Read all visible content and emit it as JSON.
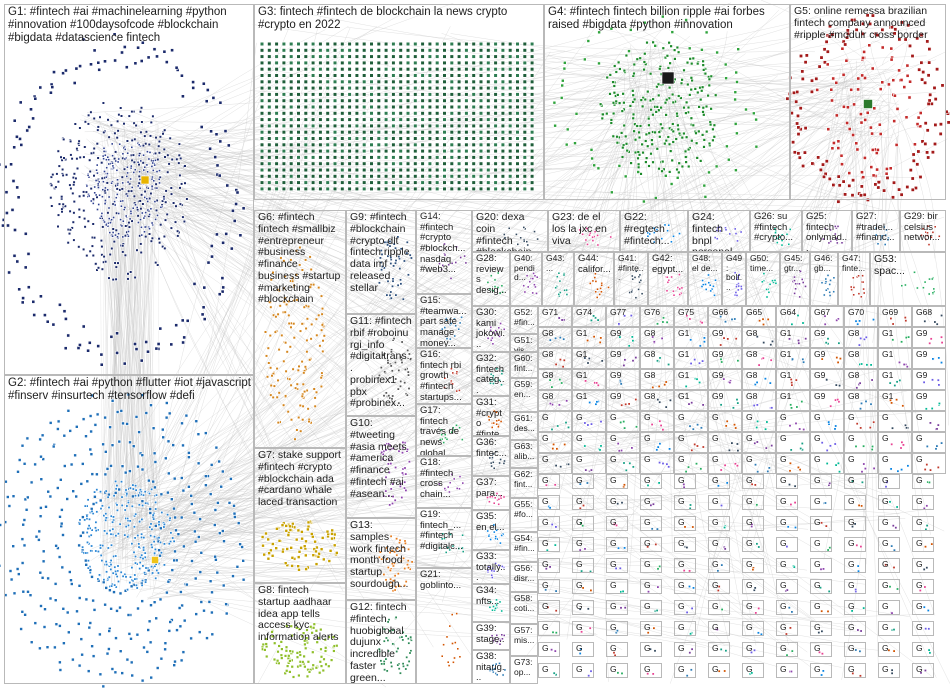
{
  "colors": {
    "background": "#ffffff",
    "border": "#b9b9b9",
    "edges": "#bdbdbd",
    "G1": "#1b2a6b",
    "G2": "#1f6fb8",
    "G3": "#1f5e3a",
    "G4": "#1c8a2a",
    "G5": "#a31a1a",
    "G6": "#d4861e",
    "G7": "#c8a100",
    "G8": "#8fbf2a",
    "G9": "#2c4f7c",
    "G10": "#8e44ad",
    "G11": "#5a5a5a",
    "G12": "#2e8b57",
    "G13": "#e67e22",
    "misc": [
      "#7a3d9c",
      "#2c7bb6",
      "#c0392b",
      "#27ae60",
      "#8e44ad",
      "#16a085",
      "#d35400",
      "#34495e",
      "#e84393",
      "#0984e3",
      "#6c5ce7",
      "#00b894"
    ]
  },
  "groups": [
    {
      "id": "G1",
      "label": "G1: #fintech #ai #machinelearning #python\n#innovation #100daysofcode #blockchain\n#bigdata #datascience fintech"
    },
    {
      "id": "G2",
      "label": "G2: #fintech #ai #python #flutter #iot #javascript\n#finserv #insurtech #tensorflow #defi"
    },
    {
      "id": "G3",
      "label": "G3: fintech #fintech de blockchain la news crypto\n#crypto en 2022"
    },
    {
      "id": "G4",
      "label": "G4: #fintech fintech billion ripple #ai forbes\nraised #bigdata #python #innovation"
    },
    {
      "id": "G5",
      "label": "G5: online remessa brazilian\nfintech company announced\n#ripple #modulr cross border"
    },
    {
      "id": "G6",
      "label": "G6: #fintech\nfintech #smallbiz\n#entrepreneur\n#business\n#finance\nbusiness #startup\n#marketing\n#blockchain"
    },
    {
      "id": "G7",
      "label": "G7: stake support\n#fintech #crypto\n#blockchain ada\n#cardano whale\nlaced transaction"
    },
    {
      "id": "G8",
      "label": "G8: fintech\nstartup aadhaar\nidea app tells\naccess kyc\ninformation alerts"
    },
    {
      "id": "G9",
      "label": "G9: #fintech\n#blockchain\n#crypto dlt\nfintech ripple\ndata imf\nreleased\nstellar"
    },
    {
      "id": "G10",
      "label": "G10:\n#tweeting\n#asia meets\n#america\n#finance\n#fintech #ai\n#asean..."
    },
    {
      "id": "G11",
      "label": "G11: #fintech\nrbif #roboinu\nrgi_info\n#digitaltrans...\nprobinex1\npbx\n#probinex..."
    },
    {
      "id": "G12",
      "label": "G12: fintech\n#fintech\nhuobiglobal\ndujunx\nincredible\nfaster green..."
    },
    {
      "id": "G13",
      "label": "G13:\nsamples\nwork fintech\nmonth food\nstartup\nsourdough..."
    },
    {
      "id": "G14",
      "label": "G14:\n#fintech\n#crypto\n#blockch...\nnasdaq\n#web3..."
    },
    {
      "id": "G15",
      "label": "G15:\n#teamwa...\npart safe\nmanage\nmoney..."
    },
    {
      "id": "G16",
      "label": "G16:\nfintech rbi\ngrowth\n#fintech\nstartups..."
    },
    {
      "id": "G17",
      "label": "G17:\nfintech\ntravés de\nnews\nglobal..."
    },
    {
      "id": "G18",
      "label": "G18:\n#fintech\ncross\nchain..."
    },
    {
      "id": "G19",
      "label": "G19:\nfintech_...\n#fintech\n#digitalc..."
    },
    {
      "id": "G20",
      "label": "G20: dexa coin\n#fintech\n#blockchain..."
    },
    {
      "id": "G21",
      "label": "G21:\ngoblinto..."
    },
    {
      "id": "G22",
      "label": "G22:\n#regtech\n#fintech..."
    },
    {
      "id": "G23",
      "label": "G23: de el\nlos la jxc en\nviva"
    },
    {
      "id": "G24",
      "label": "G24: fintech\nbnpl\npersonal..."
    },
    {
      "id": "G25",
      "label": "G25:\nfintech\nonlymad..."
    },
    {
      "id": "G26",
      "label": "G26: su\n#fintech\n#crypto..."
    },
    {
      "id": "G27",
      "label": "G27:\n#tradel...\n#financ..."
    },
    {
      "id": "G28",
      "label": "G28:\nreviews\ndesig..."
    },
    {
      "id": "G29",
      "label": "G29: bir\ncelsius\nnetwor..."
    },
    {
      "id": "G30",
      "label": "G30:\nkami\njokowi..."
    },
    {
      "id": "G31",
      "label": "G31:\n#crypto\n#finte..."
    },
    {
      "id": "G32",
      "label": "G32:\nfintech\ncateg..."
    },
    {
      "id": "G33",
      "label": "G33:\ntotally..."
    },
    {
      "id": "G34",
      "label": "G34:\nnfts..."
    },
    {
      "id": "G35",
      "label": "G35:\nen el..."
    },
    {
      "id": "G36",
      "label": "G36:\nfintec..."
    },
    {
      "id": "G37",
      "label": "G37:\npara..."
    },
    {
      "id": "G38",
      "label": "G38:\nnitaug..."
    },
    {
      "id": "G39",
      "label": "G39:\nstage..."
    },
    {
      "id": "G40",
      "label": "G40:\npendid..."
    },
    {
      "id": "G41",
      "label": "G41:\n#finte..."
    },
    {
      "id": "G42",
      "label": "G42:\negypt..."
    },
    {
      "id": "G43",
      "label": "G43:\n..."
    },
    {
      "id": "G44",
      "label": "G44:\ncalifor..."
    },
    {
      "id": "G45",
      "label": "G45:\ngtr..."
    },
    {
      "id": "G46",
      "label": "G46:\ngb..."
    },
    {
      "id": "G47",
      "label": "G47:\nfinte..."
    },
    {
      "id": "G48",
      "label": "G48:\nel de..."
    },
    {
      "id": "G49",
      "label": "G49:\nbolt..."
    },
    {
      "id": "G50",
      "label": "G50:\ntime..."
    },
    {
      "id": "G51",
      "label": "G51:\nvis..."
    },
    {
      "id": "G52",
      "label": "G52:\n#fin..."
    },
    {
      "id": "G53",
      "label": "G53:\nspac..."
    },
    {
      "id": "G54",
      "label": "G54:\n#fin..."
    },
    {
      "id": "G55",
      "label": "G55:\n#fo..."
    },
    {
      "id": "G56",
      "label": "G56:\ndisr..."
    },
    {
      "id": "G57",
      "label": "G57:\nmis..."
    },
    {
      "id": "G58",
      "label": "G58:\ncoti..."
    },
    {
      "id": "G59",
      "label": "G59:\nen..."
    },
    {
      "id": "G60",
      "label": "G60:\nfint..."
    },
    {
      "id": "G61",
      "label": "G61:\ndes..."
    },
    {
      "id": "G62",
      "label": "G62:\nfint..."
    },
    {
      "id": "G63",
      "label": "G63:\nalib..."
    },
    {
      "id": "G73",
      "label": "G73:\nop..."
    }
  ],
  "tile_prefixes": {
    "row1": [
      "G71",
      "G74",
      "G77",
      "G76",
      "G75",
      "G66",
      "G65",
      "G64",
      "G67",
      "G70",
      "G69",
      "G68"
    ],
    "generic": [
      "G8",
      "G1",
      "G9",
      "G"
    ]
  }
}
